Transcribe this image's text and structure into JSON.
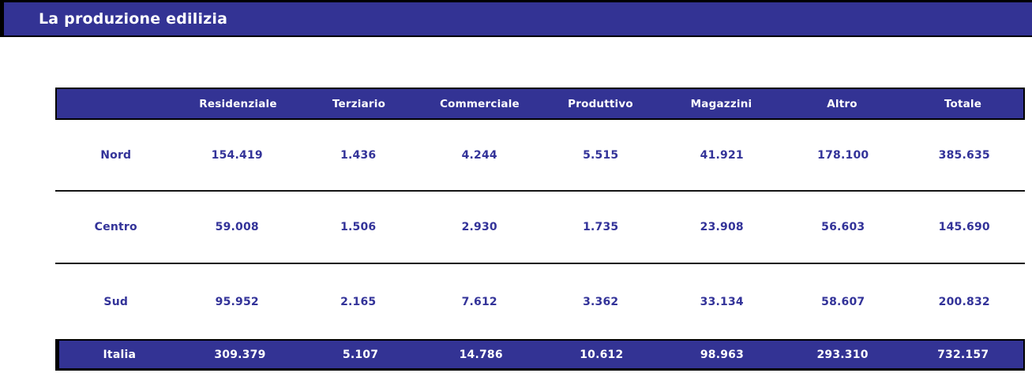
{
  "title_bar": {
    "title": "La produzione edilizia"
  },
  "colors": {
    "primary_blue": "#333394",
    "data_text_blue": "#333399",
    "header_text": "#ffffff",
    "border_black": "#000000",
    "page_background": "#ffffff"
  },
  "table": {
    "columns": [
      "",
      "Residenziale",
      "Terziario",
      "Commerciale",
      "Produttivo",
      "Magazzini",
      "Altro",
      "Totale"
    ],
    "rows": [
      {
        "label": "Nord",
        "values": [
          "154.419",
          "1.436",
          "4.244",
          "5.515",
          "41.921",
          "178.100",
          "385.635"
        ]
      },
      {
        "label": "Centro",
        "values": [
          "59.008",
          "1.506",
          "2.930",
          "1.735",
          "23.908",
          "56.603",
          "145.690"
        ]
      },
      {
        "label": "Sud",
        "values": [
          "95.952",
          "2.165",
          "7.612",
          "3.362",
          "33.134",
          "58.607",
          "200.832"
        ]
      }
    ],
    "total_row": {
      "label": "Italia",
      "values": [
        "309.379",
        "5.107",
        "14.786",
        "10.612",
        "98.963",
        "293.310",
        "732.157"
      ]
    }
  }
}
